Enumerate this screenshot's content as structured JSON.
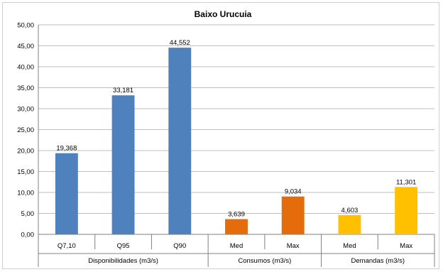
{
  "chart_data": {
    "type": "bar",
    "title": "Baixo Urucuia",
    "ylim": [
      0,
      50
    ],
    "ytick_step": 5,
    "ytick_labels": [
      "0,00",
      "5,00",
      "10,00",
      "15,00",
      "20,00",
      "25,00",
      "30,00",
      "35,00",
      "40,00",
      "45,00",
      "50,00"
    ],
    "grid": true,
    "legend": "none",
    "groups": [
      {
        "name": "Disponibilidades (m3/s)",
        "color": "#4f81bd",
        "categories": [
          "Q7,10",
          "Q95",
          "Q90"
        ],
        "values": [
          19.368,
          33.181,
          44.552
        ],
        "value_labels": [
          "19,368",
          "33,181",
          "44,552"
        ]
      },
      {
        "name": "Consumos (m3/s)",
        "color": "#e46c0a",
        "categories": [
          "Med",
          "Max"
        ],
        "values": [
          3.639,
          9.034
        ],
        "value_labels": [
          "3,639",
          "9,034"
        ]
      },
      {
        "name": "Demandas (m3/s)",
        "color": "#ffc000",
        "categories": [
          "Med",
          "Max"
        ],
        "values": [
          4.603,
          11.301
        ],
        "value_labels": [
          "4,603",
          "11,301"
        ]
      }
    ]
  }
}
